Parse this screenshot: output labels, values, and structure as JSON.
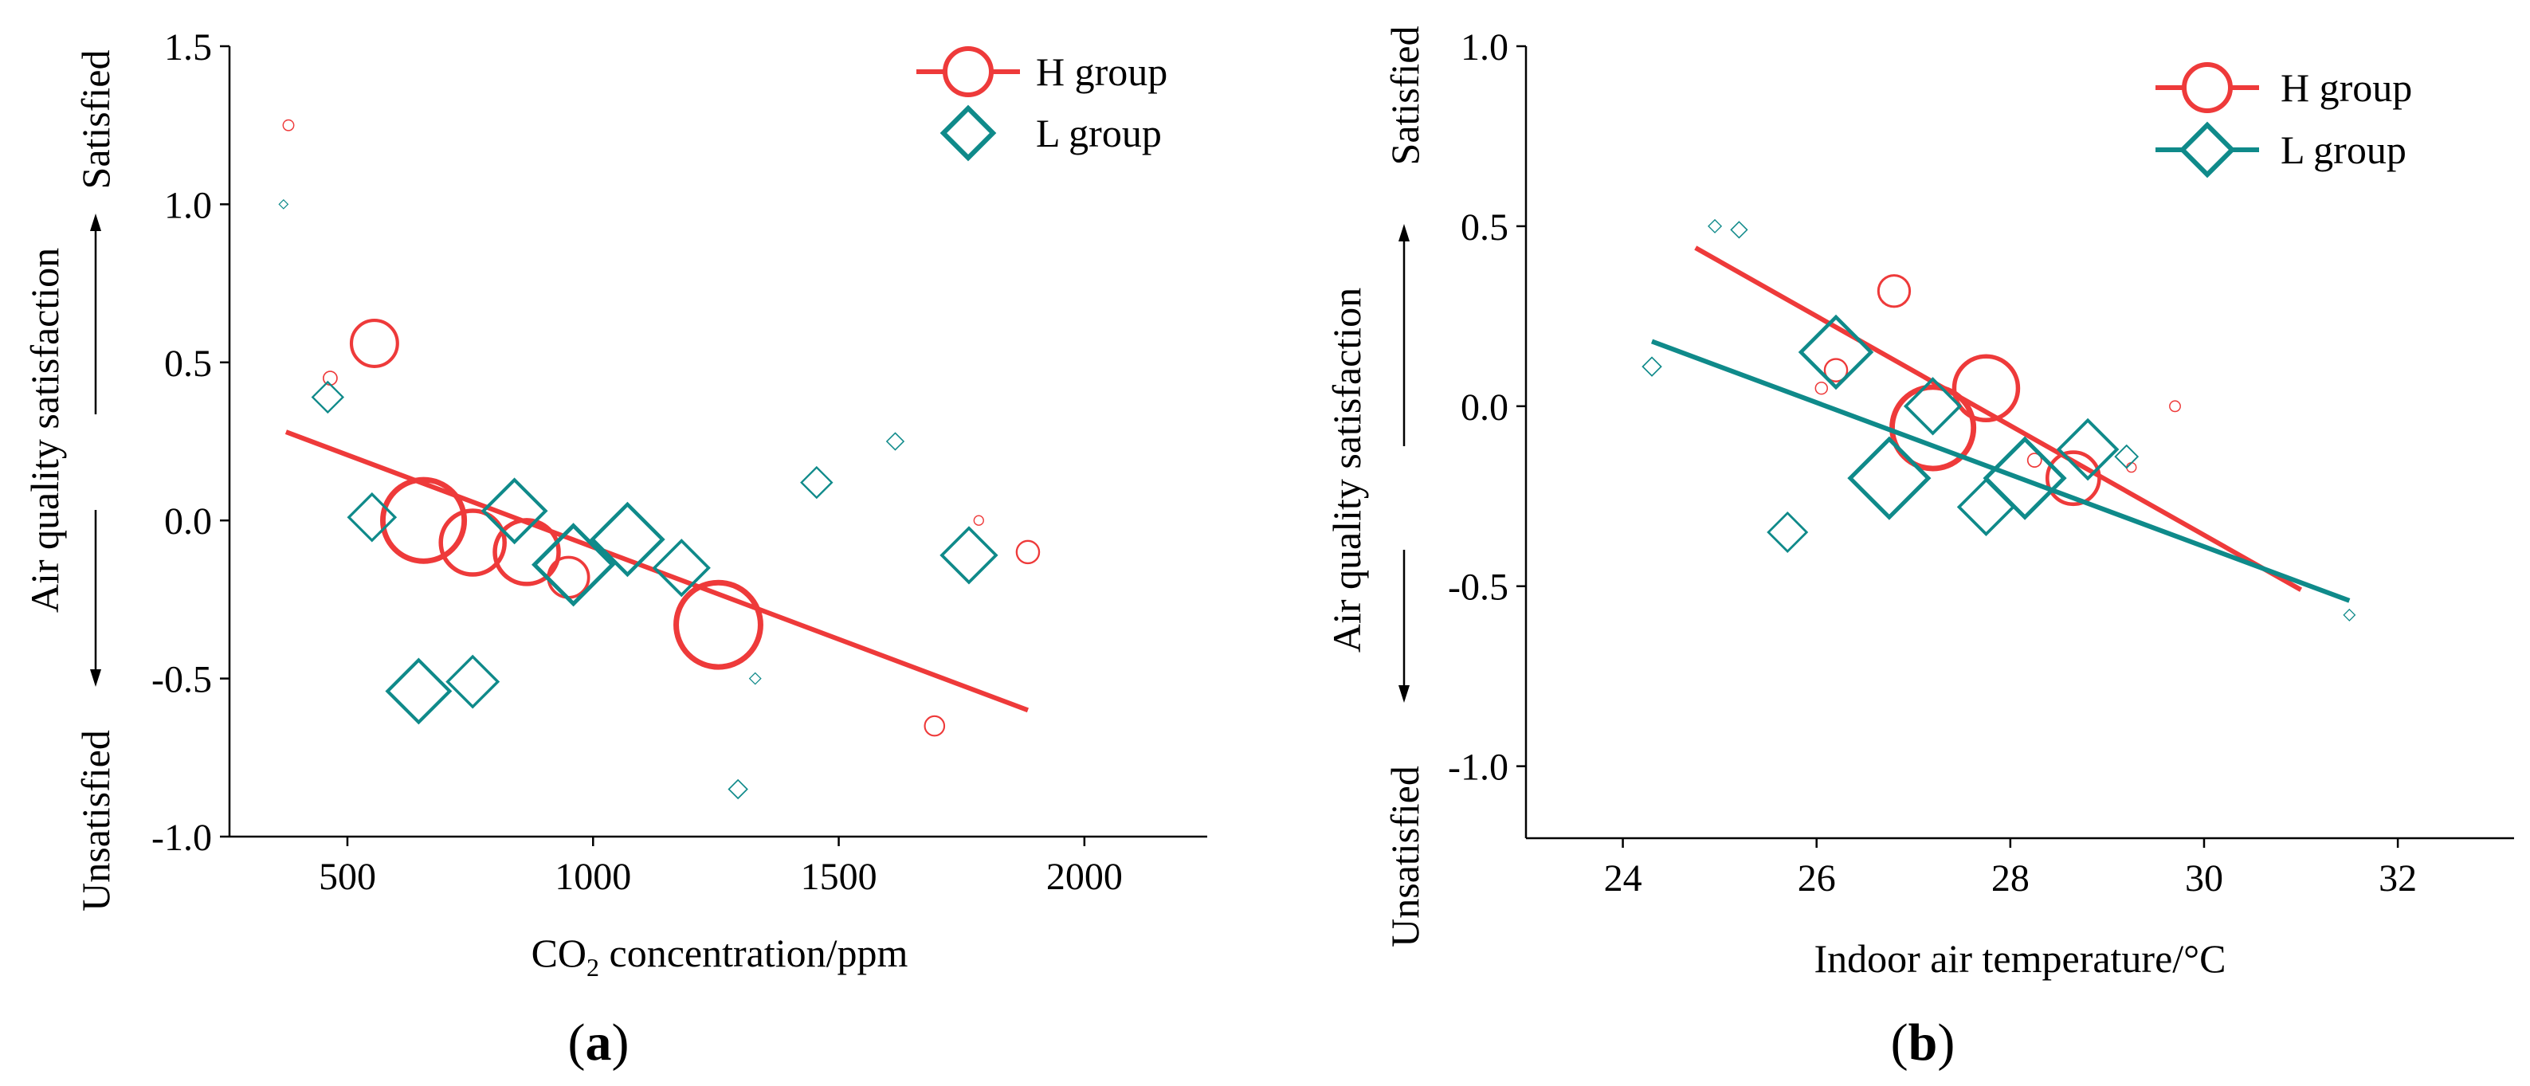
{
  "colors": {
    "H": "#ee3a3a",
    "L": "#0f8a8a"
  },
  "chart_data": [
    {
      "type": "scatter",
      "panel": "a",
      "panel_label": "a",
      "xlabel_main": "CO",
      "xlabel_sub": "2",
      "xlabel_rest": " concentration/ppm",
      "ylabel": "Air quality satisfaction",
      "y_top_label": "Satisfied",
      "y_bottom_label": "Unsatisfied",
      "xlim": [
        260,
        2250
      ],
      "ylim": [
        -1.0,
        1.5
      ],
      "xticks": [
        500,
        1000,
        1500,
        2000
      ],
      "yticks": [
        -1.0,
        -0.5,
        0.0,
        0.5,
        1.0,
        1.5
      ],
      "ytick_labels": [
        "-1.0",
        "-0.5",
        "0.0",
        "0.5",
        "1.0",
        "1.5"
      ],
      "legend": [
        {
          "key": "H",
          "label": "H group",
          "marker": "circle"
        },
        {
          "key": "L",
          "label": "L group",
          "marker": "diamond"
        }
      ],
      "series": [
        {
          "name": "H group",
          "key": "H",
          "points": [
            {
              "x": 380,
              "y": 1.25,
              "size": 1
            },
            {
              "x": 465,
              "y": 0.45,
              "size": 1.5
            },
            {
              "x": 555,
              "y": 0.56,
              "size": 7
            },
            {
              "x": 655,
              "y": 0.0,
              "size": 13
            },
            {
              "x": 755,
              "y": -0.07,
              "size": 10
            },
            {
              "x": 865,
              "y": -0.1,
              "size": 10
            },
            {
              "x": 950,
              "y": -0.18,
              "size": 6
            },
            {
              "x": 1255,
              "y": -0.33,
              "size": 13.5
            },
            {
              "x": 1695,
              "y": -0.65,
              "size": 2.5
            },
            {
              "x": 1785,
              "y": 0.0,
              "size": 0.8
            },
            {
              "x": 1885,
              "y": -0.1,
              "size": 3
            }
          ],
          "fit": {
            "x": [
              375,
              1885
            ],
            "y": [
              0.28,
              -0.6
            ]
          }
        },
        {
          "name": "L group",
          "key": "L",
          "points": [
            {
              "x": 370,
              "y": 1.0,
              "size": 0.3
            },
            {
              "x": 460,
              "y": 0.39,
              "size": 3
            },
            {
              "x": 550,
              "y": 0.01,
              "size": 5
            },
            {
              "x": 645,
              "y": -0.54,
              "size": 7
            },
            {
              "x": 755,
              "y": -0.51,
              "size": 5.5
            },
            {
              "x": 840,
              "y": 0.03,
              "size": 7
            },
            {
              "x": 960,
              "y": -0.14,
              "size": 9
            },
            {
              "x": 1070,
              "y": -0.06,
              "size": 8
            },
            {
              "x": 1180,
              "y": -0.15,
              "size": 6
            },
            {
              "x": 1295,
              "y": -0.85,
              "size": 1.5
            },
            {
              "x": 1330,
              "y": -0.5,
              "size": 0.6
            },
            {
              "x": 1455,
              "y": 0.12,
              "size": 3
            },
            {
              "x": 1615,
              "y": 0.25,
              "size": 1.3
            },
            {
              "x": 1765,
              "y": -0.11,
              "size": 6
            }
          ]
        }
      ]
    },
    {
      "type": "scatter",
      "panel": "b",
      "panel_label": "b",
      "xlabel_main": "Indoor air temperature/°C",
      "ylabel": "Air quality satisfaction",
      "y_top_label": "Satisfied",
      "y_bottom_label": "Unsatisfied",
      "xlim": [
        23.0,
        33.2
      ],
      "ylim": [
        -1.2,
        1.0
      ],
      "xticks": [
        24,
        26,
        28,
        30,
        32
      ],
      "yticks": [
        -1.0,
        -0.5,
        0.0,
        0.5,
        1.0
      ],
      "ytick_labels": [
        "-1.0",
        "-0.5",
        "0.0",
        "0.5",
        "1.0"
      ],
      "legend": [
        {
          "key": "H",
          "label": "H group",
          "marker": "circle"
        },
        {
          "key": "L",
          "label": "L group",
          "marker": "diamond"
        }
      ],
      "series": [
        {
          "name": "H group",
          "key": "H",
          "points": [
            {
              "x": 26.05,
              "y": 0.05,
              "size": 1.2
            },
            {
              "x": 26.2,
              "y": 0.1,
              "size": 3
            },
            {
              "x": 26.8,
              "y": 0.32,
              "size": 4.5
            },
            {
              "x": 27.2,
              "y": -0.06,
              "size": 13
            },
            {
              "x": 27.75,
              "y": 0.05,
              "size": 10
            },
            {
              "x": 28.25,
              "y": -0.15,
              "size": 1.5
            },
            {
              "x": 28.65,
              "y": -0.2,
              "size": 8
            },
            {
              "x": 29.25,
              "y": -0.17,
              "size": 0.8
            },
            {
              "x": 29.7,
              "y": 0.0,
              "size": 1
            }
          ],
          "fit": {
            "x": [
              24.75,
              31.0
            ],
            "y": [
              0.44,
              -0.51
            ]
          }
        },
        {
          "name": "L group",
          "key": "L",
          "points": [
            {
              "x": 24.3,
              "y": 0.11,
              "size": 1.5
            },
            {
              "x": 24.95,
              "y": 0.5,
              "size": 0.8
            },
            {
              "x": 25.2,
              "y": 0.49,
              "size": 1.2
            },
            {
              "x": 25.7,
              "y": -0.35,
              "size": 4
            },
            {
              "x": 26.2,
              "y": 0.15,
              "size": 8
            },
            {
              "x": 26.75,
              "y": -0.2,
              "size": 9
            },
            {
              "x": 27.2,
              "y": 0.0,
              "size": 6
            },
            {
              "x": 27.75,
              "y": -0.28,
              "size": 6
            },
            {
              "x": 28.15,
              "y": -0.2,
              "size": 9
            },
            {
              "x": 28.8,
              "y": -0.12,
              "size": 6.5
            },
            {
              "x": 29.2,
              "y": -0.14,
              "size": 2
            },
            {
              "x": 31.5,
              "y": -0.58,
              "size": 0.6
            }
          ],
          "fit": {
            "x": [
              24.3,
              31.5
            ],
            "y": [
              0.18,
              -0.54
            ]
          }
        }
      ]
    }
  ]
}
